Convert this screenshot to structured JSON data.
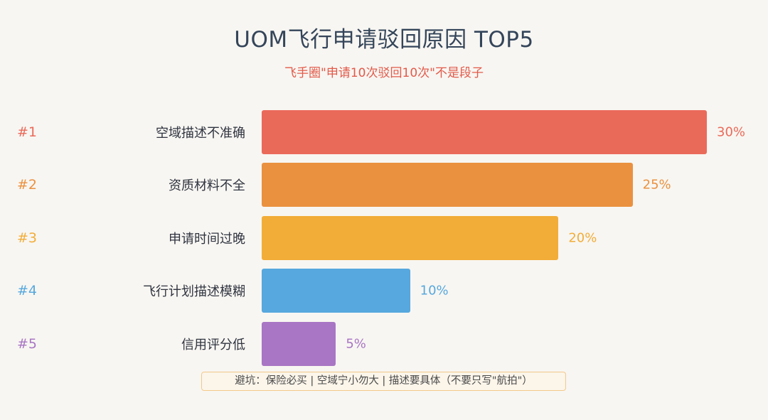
{
  "title": "UOM飞行申请驳回原因 TOP5",
  "subtitle": "飞手圈\"申请10次驳回10次\"不是段子",
  "footer": "避坑：保险必买 | 空域宁小勿大 | 描述要具体（不要只写\"航拍\"）",
  "chart_data": {
    "type": "bar",
    "orientation": "horizontal",
    "ranks": [
      "#1",
      "#2",
      "#3",
      "#4",
      "#5"
    ],
    "categories": [
      "空域描述不准确",
      "资质材料不全",
      "申请时间过晚",
      "飞行计划描述模糊",
      "信用评分低"
    ],
    "values": [
      30,
      25,
      20,
      10,
      5
    ],
    "value_labels": [
      "30%",
      "25%",
      "20%",
      "10%",
      "5%"
    ],
    "colors": [
      "#ea6a5a",
      "#ea9140",
      "#f2ad38",
      "#56a8de",
      "#a876c4"
    ],
    "xlim": [
      0,
      30
    ],
    "grid": false,
    "legend": "none"
  }
}
